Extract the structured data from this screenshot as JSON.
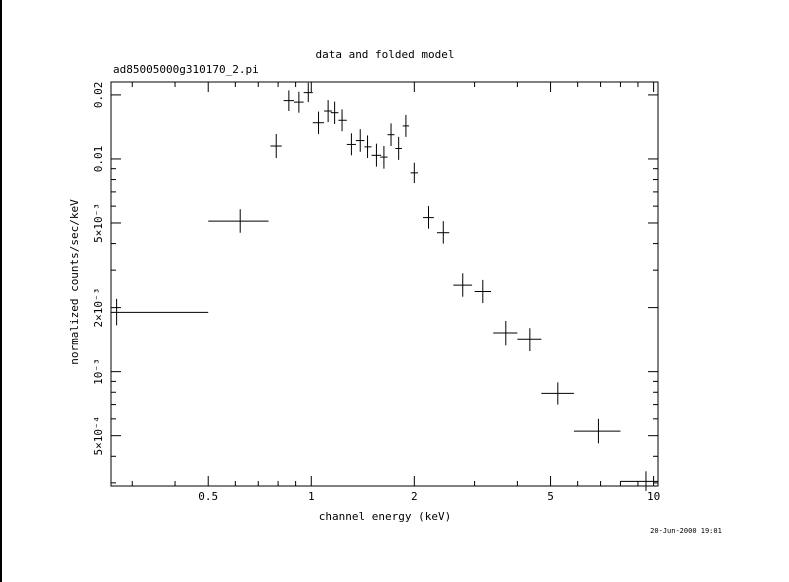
{
  "chart_data": {
    "type": "scatter",
    "title": "data and folded model",
    "subtitle": "ad85005000g310170_2.pi",
    "xlabel": "channel energy (keV)",
    "ylabel": "normalized counts/sec/keV",
    "timestamp": "20-Jun-2000 19:01",
    "x_scale": "log",
    "y_scale": "log",
    "xlim": [
      0.26,
      10.3
    ],
    "ylim": [
      0.00029,
      0.023
    ],
    "x_ticks": [
      {
        "value": 0.5,
        "label": "0.5"
      },
      {
        "value": 1,
        "label": "1"
      },
      {
        "value": 2,
        "label": "2"
      },
      {
        "value": 5,
        "label": "5"
      },
      {
        "value": 10,
        "label": "10"
      }
    ],
    "y_ticks": [
      {
        "value": 0.0005,
        "label": "5×10⁻⁴"
      },
      {
        "value": 0.001,
        "label": "10⁻³"
      },
      {
        "value": 0.002,
        "label": "2×10⁻³"
      },
      {
        "value": 0.005,
        "label": "5×10⁻³"
      },
      {
        "value": 0.01,
        "label": "0.01"
      },
      {
        "value": 0.02,
        "label": "0.02"
      }
    ],
    "grid": false,
    "points": [
      {
        "x": 0.27,
        "xlo": 0.26,
        "xhi": 0.5,
        "y": 0.0019,
        "ylo": 0.00165,
        "yhi": 0.0022
      },
      {
        "x": 0.62,
        "xlo": 0.5,
        "xhi": 0.75,
        "y": 0.0051,
        "ylo": 0.0045,
        "yhi": 0.0058
      },
      {
        "x": 0.79,
        "xlo": 0.76,
        "xhi": 0.82,
        "y": 0.0115,
        "ylo": 0.0101,
        "yhi": 0.0131
      },
      {
        "x": 0.86,
        "xlo": 0.83,
        "xhi": 0.89,
        "y": 0.0188,
        "ylo": 0.0168,
        "yhi": 0.021
      },
      {
        "x": 0.92,
        "xlo": 0.89,
        "xhi": 0.95,
        "y": 0.0185,
        "ylo": 0.0165,
        "yhi": 0.0207
      },
      {
        "x": 0.98,
        "xlo": 0.95,
        "xhi": 1.01,
        "y": 0.0205,
        "ylo": 0.0185,
        "yhi": 0.0228
      },
      {
        "x": 1.05,
        "xlo": 1.01,
        "xhi": 1.09,
        "y": 0.0148,
        "ylo": 0.0131,
        "yhi": 0.0167
      },
      {
        "x": 1.12,
        "xlo": 1.09,
        "xhi": 1.15,
        "y": 0.0168,
        "ylo": 0.0149,
        "yhi": 0.0189
      },
      {
        "x": 1.17,
        "xlo": 1.14,
        "xhi": 1.2,
        "y": 0.0165,
        "ylo": 0.0146,
        "yhi": 0.0186
      },
      {
        "x": 1.23,
        "xlo": 1.2,
        "xhi": 1.27,
        "y": 0.0152,
        "ylo": 0.0135,
        "yhi": 0.0171
      },
      {
        "x": 1.31,
        "xlo": 1.27,
        "xhi": 1.35,
        "y": 0.0117,
        "ylo": 0.0104,
        "yhi": 0.0132
      },
      {
        "x": 1.39,
        "xlo": 1.35,
        "xhi": 1.43,
        "y": 0.0122,
        "ylo": 0.0108,
        "yhi": 0.0138
      },
      {
        "x": 1.46,
        "xlo": 1.43,
        "xhi": 1.5,
        "y": 0.0114,
        "ylo": 0.0101,
        "yhi": 0.0129
      },
      {
        "x": 1.55,
        "xlo": 1.5,
        "xhi": 1.6,
        "y": 0.0104,
        "ylo": 0.0092,
        "yhi": 0.0118
      },
      {
        "x": 1.63,
        "xlo": 1.59,
        "xhi": 1.67,
        "y": 0.0102,
        "ylo": 0.009,
        "yhi": 0.0115
      },
      {
        "x": 1.71,
        "xlo": 1.67,
        "xhi": 1.75,
        "y": 0.013,
        "ylo": 0.0115,
        "yhi": 0.0147
      },
      {
        "x": 1.8,
        "xlo": 1.76,
        "xhi": 1.84,
        "y": 0.0112,
        "ylo": 0.0099,
        "yhi": 0.0127
      },
      {
        "x": 1.89,
        "xlo": 1.85,
        "xhi": 1.93,
        "y": 0.0143,
        "ylo": 0.0127,
        "yhi": 0.0161
      },
      {
        "x": 2.0,
        "xlo": 1.95,
        "xhi": 2.05,
        "y": 0.0086,
        "ylo": 0.0077,
        "yhi": 0.0096
      },
      {
        "x": 2.2,
        "xlo": 2.12,
        "xhi": 2.28,
        "y": 0.0053,
        "ylo": 0.0047,
        "yhi": 0.006
      },
      {
        "x": 2.43,
        "xlo": 2.33,
        "xhi": 2.53,
        "y": 0.0045,
        "ylo": 0.004,
        "yhi": 0.0051
      },
      {
        "x": 2.77,
        "xlo": 2.6,
        "xhi": 2.95,
        "y": 0.00255,
        "ylo": 0.00225,
        "yhi": 0.0029
      },
      {
        "x": 3.17,
        "xlo": 3.0,
        "xhi": 3.35,
        "y": 0.00238,
        "ylo": 0.0021,
        "yhi": 0.0027
      },
      {
        "x": 3.7,
        "xlo": 3.4,
        "xhi": 4.0,
        "y": 0.00152,
        "ylo": 0.00133,
        "yhi": 0.00173
      },
      {
        "x": 4.35,
        "xlo": 4.0,
        "xhi": 4.7,
        "y": 0.00142,
        "ylo": 0.00125,
        "yhi": 0.0016
      },
      {
        "x": 5.25,
        "xlo": 4.7,
        "xhi": 5.85,
        "y": 0.00079,
        "ylo": 0.0007,
        "yhi": 0.00089
      },
      {
        "x": 6.9,
        "xlo": 5.85,
        "xhi": 8.0,
        "y": 0.000525,
        "ylo": 0.00046,
        "yhi": 0.0006
      },
      {
        "x": 9.5,
        "xlo": 8.0,
        "xhi": 10.3,
        "y": 0.000305,
        "ylo": 0.000275,
        "yhi": 0.00034
      }
    ]
  }
}
